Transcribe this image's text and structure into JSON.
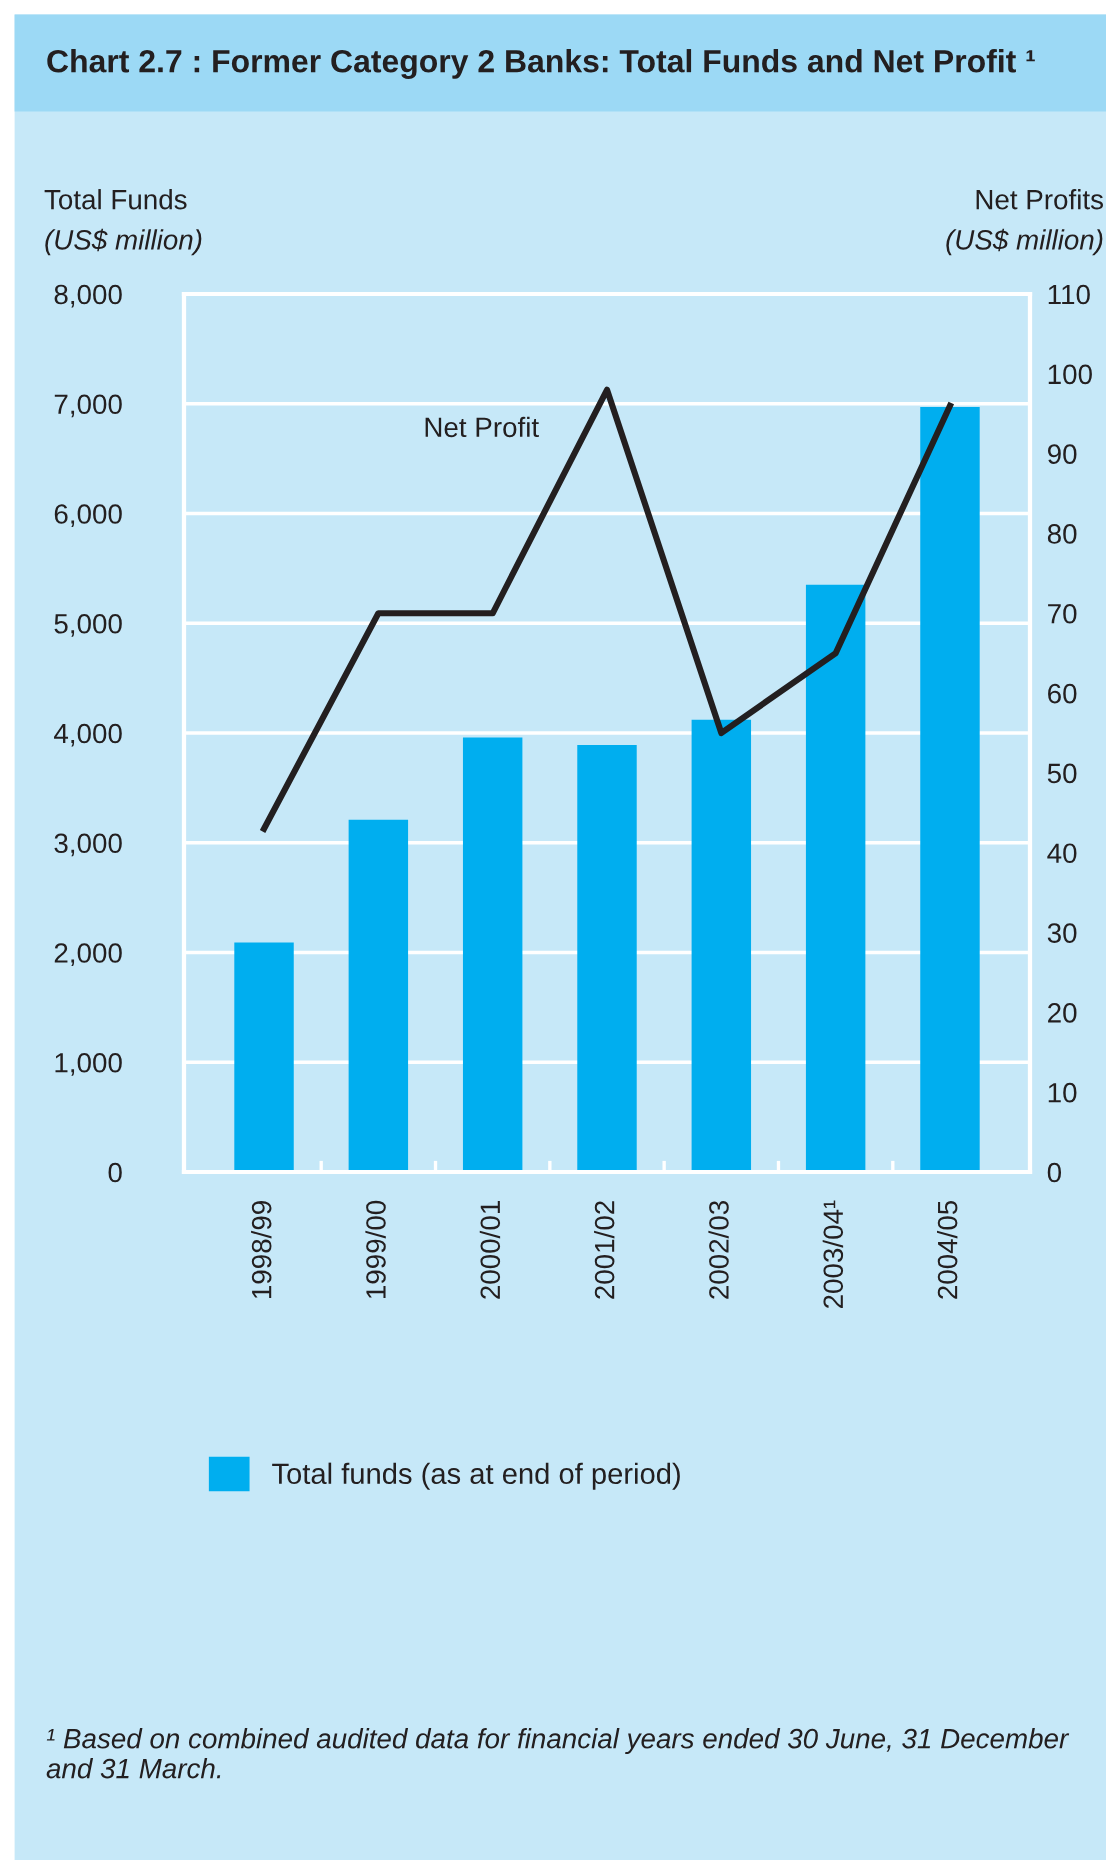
{
  "chart_data": {
    "type": "bar",
    "title": "Chart 2.7 : Former Category 2 Banks: Total Funds and Net Profit ¹",
    "ylabel": "Total Funds\n(US$ million)",
    "y2label": "Net Profits\n(US$ million)",
    "categories": [
      "1998/99",
      "1999/00",
      "2000/01",
      "2001/02",
      "2002/03",
      "2003/04¹",
      "2004/05"
    ],
    "series": [
      {
        "name": "Total funds (as at end of period)",
        "color": "#00aeef",
        "values": [
          2090,
          3210,
          3960,
          3890,
          4120,
          5350,
          6970
        ]
      },
      {
        "name": "Net Profit",
        "type": "line",
        "axis": "y2",
        "color": "#231f20",
        "values": [
          43,
          70,
          70,
          98,
          55,
          65,
          96
        ]
      }
    ],
    "ylim": [
      0,
      8000
    ],
    "yticks": [
      {
        "value": 0,
        "label": "0"
      },
      {
        "value": 1000,
        "label": "1,000"
      },
      {
        "value": 2000,
        "label": "2,000"
      },
      {
        "value": 3000,
        "label": "3,000"
      },
      {
        "value": 4000,
        "label": "4,000"
      },
      {
        "value": 5000,
        "label": "5,000"
      },
      {
        "value": 6000,
        "label": "6,000"
      },
      {
        "value": 7000,
        "label": "7,000"
      },
      {
        "value": 8000,
        "label": "8,000"
      }
    ],
    "y2lim": [
      0,
      110
    ],
    "y2ticks": [
      0,
      10,
      20,
      30,
      40,
      50,
      60,
      70,
      80,
      90,
      100,
      110
    ],
    "grid": "y",
    "legend": "bottom",
    "annotations": [
      "¹ Based on combined audited data for financial years ended 30 June, 31 December and 31 March."
    ]
  }
}
